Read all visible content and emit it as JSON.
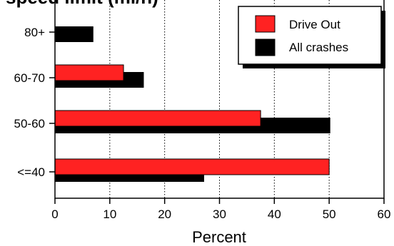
{
  "chart_data": {
    "type": "bar",
    "orientation": "horizontal",
    "title": "speed limit (mi/h)",
    "categories": [
      "80+",
      "60-70",
      "50-60",
      "<=40"
    ],
    "series": [
      {
        "name": "Drive Out",
        "values": [
          0,
          12.5,
          37.5,
          50
        ],
        "color": "#ff2222"
      },
      {
        "name": "All crashes",
        "values": [
          7,
          16.2,
          50.2,
          27.2
        ],
        "color": "#000000"
      }
    ],
    "xlabel": "Percent",
    "ylabel": "",
    "xlim": [
      0,
      60
    ],
    "xticks": [
      "0",
      "10",
      "20",
      "30",
      "40",
      "50",
      "60"
    ],
    "grid": "vertical dotted",
    "legend_placement": "top-right"
  }
}
